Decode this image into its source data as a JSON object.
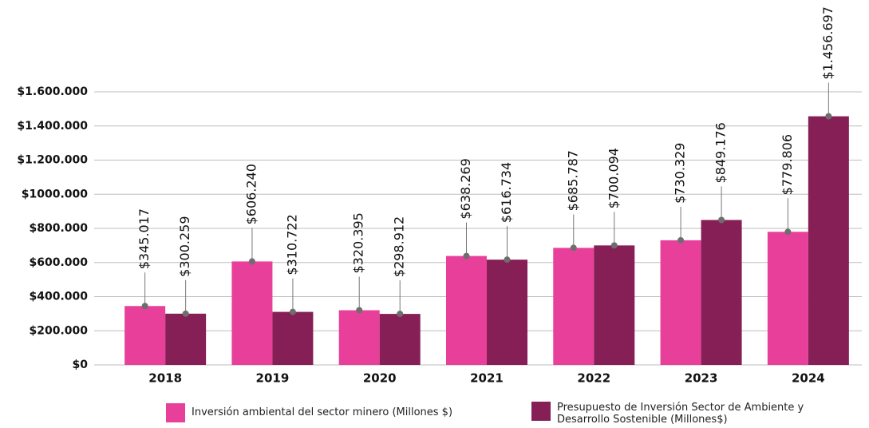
{
  "chart_data": {
    "type": "bar",
    "categories": [
      "2018",
      "2019",
      "2020",
      "2021",
      "2022",
      "2023",
      "2024"
    ],
    "series": [
      {
        "name": "Inversión ambiental del sector minero (Millones $)",
        "color": "#e8409a",
        "values": [
          345017,
          606240,
          320395,
          638269,
          685787,
          730329,
          779806
        ],
        "value_labels": [
          "$345.017",
          "$606.240",
          "$320.395",
          "$638.269",
          "$685.787",
          "$730.329",
          "$779.806"
        ]
      },
      {
        "name": "Presupuesto de Inversión Sector de Ambiente y Desarrollo Sostenible (Millones$)",
        "color": "#851f55",
        "values": [
          300259,
          310722,
          298912,
          616734,
          700094,
          849176,
          1456697
        ],
        "value_labels": [
          "$300.259",
          "$310.722",
          "$298.912",
          "$616.734",
          "$700.094",
          "$849.176",
          "$1.456.697"
        ]
      }
    ],
    "ylim": [
      0,
      1600000
    ],
    "yticks": [
      {
        "value": 0,
        "label": "$0"
      },
      {
        "value": 200000,
        "label": "$200.000"
      },
      {
        "value": 400000,
        "label": "$400.000"
      },
      {
        "value": 600000,
        "label": "$600.000"
      },
      {
        "value": 800000,
        "label": "$800.000"
      },
      {
        "value": 1000000,
        "label": "$1000.000"
      },
      {
        "value": 1200000,
        "label": "$1.200.000"
      },
      {
        "value": 1400000,
        "label": "$1.400.000"
      },
      {
        "value": 1600000,
        "label": "$1.600.000"
      }
    ],
    "grid": true,
    "legend": "bottom"
  }
}
